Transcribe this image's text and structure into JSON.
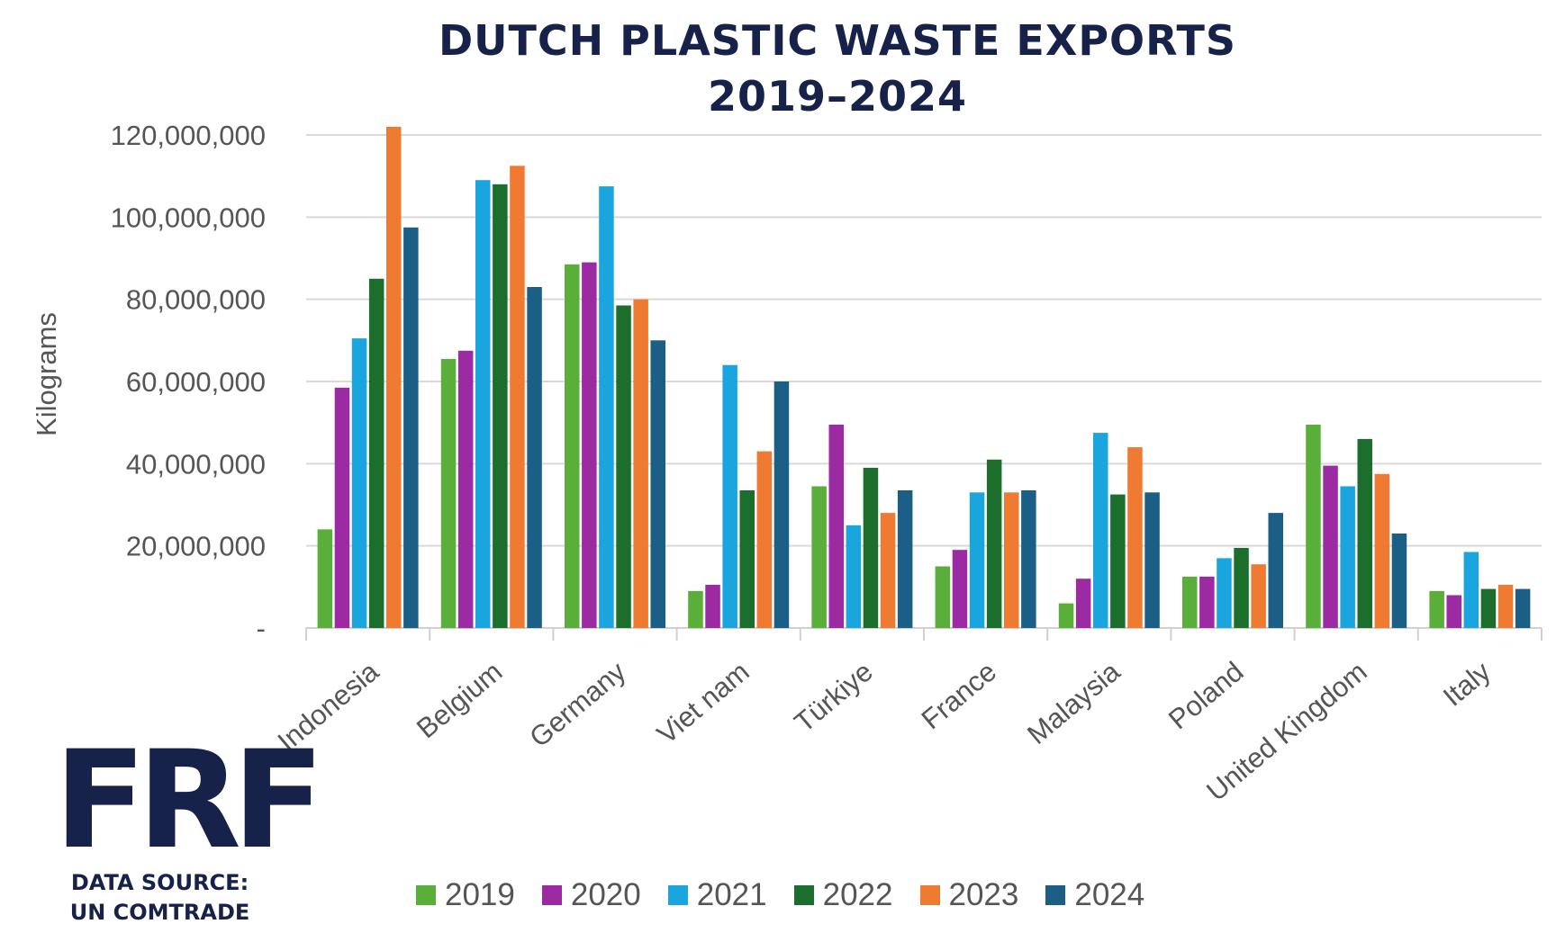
{
  "chart_data": {
    "type": "bar",
    "title": "DUTCH PLASTIC WASTE EXPORTS",
    "subtitle": "2019–2024",
    "xlabel": "",
    "ylabel": "Kilograms",
    "ylim": [
      0,
      120000000
    ],
    "yticks": [
      0,
      20000000,
      40000000,
      60000000,
      80000000,
      100000000,
      120000000
    ],
    "ytick_labels": [
      "-",
      "20,000,000",
      "40,000,000",
      "60,000,000",
      "80,000,000",
      "100,000,000",
      "120,000,000"
    ],
    "grid": true,
    "legend_position": "bottom",
    "categories": [
      "Indonesia",
      "Belgium",
      "Germany",
      "Viet nam",
      "Türkiye",
      "France",
      "Malaysia",
      "Poland",
      "United Kingdom",
      "Italy"
    ],
    "series": [
      {
        "name": "2019",
        "color": "#5aae3a",
        "values": [
          24000000,
          65500000,
          88500000,
          9000000,
          34500000,
          15000000,
          6000000,
          12500000,
          49500000,
          9000000
        ]
      },
      {
        "name": "2020",
        "color": "#9b2aa3",
        "values": [
          58500000,
          67500000,
          89000000,
          10500000,
          49500000,
          19000000,
          12000000,
          12500000,
          39500000,
          8000000
        ]
      },
      {
        "name": "2021",
        "color": "#1ba5de",
        "values": [
          70500000,
          109000000,
          107500000,
          64000000,
          25000000,
          33000000,
          47500000,
          17000000,
          34500000,
          18500000
        ]
      },
      {
        "name": "2022",
        "color": "#1c6e2c",
        "values": [
          85000000,
          108000000,
          78500000,
          33500000,
          39000000,
          41000000,
          32500000,
          19500000,
          46000000,
          9500000
        ]
      },
      {
        "name": "2023",
        "color": "#ef7a32",
        "values": [
          122000000,
          112500000,
          80000000,
          43000000,
          28000000,
          33000000,
          44000000,
          15500000,
          37500000,
          10500000
        ]
      },
      {
        "name": "2024",
        "color": "#1c5f86",
        "values": [
          97500000,
          83000000,
          70000000,
          60000000,
          33500000,
          33500000,
          33000000,
          28000000,
          23000000,
          9500000
        ]
      }
    ]
  },
  "logo": {
    "mark": "FRF",
    "source_line1": "DATA SOURCE:",
    "source_line2": "UN COMTRADE"
  }
}
